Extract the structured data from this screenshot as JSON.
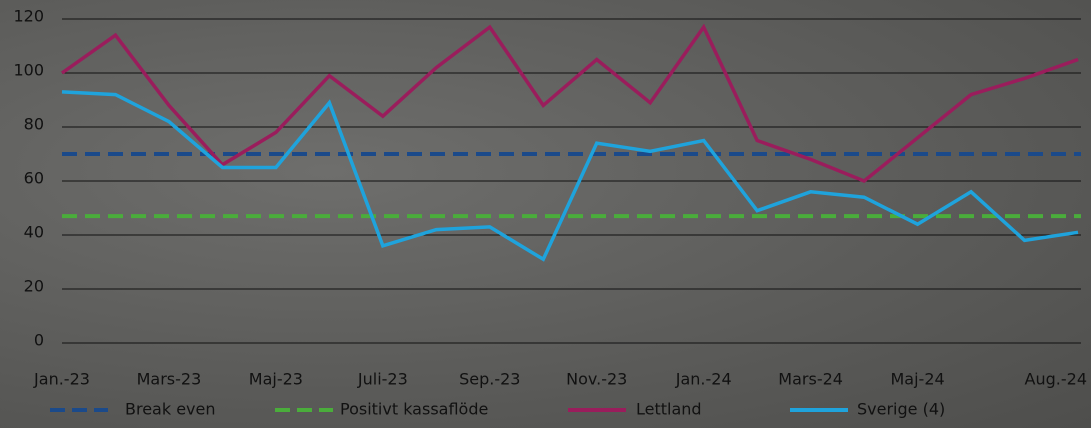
{
  "chart_data": {
    "type": "line",
    "categories": [
      "Jan.-23",
      null,
      "Mars-23",
      null,
      "Maj-23",
      null,
      "Juli-23",
      null,
      "Sep.-23",
      null,
      "Nov.-23",
      null,
      "Jan.-24",
      null,
      "Mars-24",
      null,
      "Maj-24",
      null,
      null,
      "Aug.-24"
    ],
    "ylim": [
      0,
      120
    ],
    "yticks": [
      0,
      20,
      40,
      60,
      80,
      100,
      120
    ],
    "grid": true,
    "series": [
      {
        "name": "Break even",
        "color": "#1b4a8a",
        "dashed": true,
        "values": [
          70,
          70,
          70,
          70,
          70,
          70,
          70,
          70,
          70,
          70,
          70,
          70,
          70,
          70,
          70,
          70,
          70,
          70,
          70,
          70
        ]
      },
      {
        "name": "Positivt kassaflöde",
        "color": "#4aad3b",
        "dashed": true,
        "values": [
          47,
          47,
          47,
          47,
          47,
          47,
          47,
          47,
          47,
          47,
          47,
          47,
          47,
          47,
          47,
          47,
          47,
          47,
          47,
          47
        ]
      },
      {
        "name": "Lettland",
        "color": "#9a1d5c",
        "dashed": false,
        "values": [
          100,
          114,
          88,
          66,
          78,
          99,
          84,
          102,
          117,
          88,
          105,
          89,
          117,
          75,
          68,
          60,
          76,
          92,
          98,
          105
        ]
      },
      {
        "name": "Sverige (4)",
        "color": "#1fa3dc",
        "dashed": false,
        "values": [
          93,
          92,
          82,
          65,
          65,
          89,
          36,
          42,
          43,
          31,
          74,
          71,
          75,
          49,
          56,
          54,
          44,
          56,
          38,
          41
        ]
      }
    ]
  }
}
